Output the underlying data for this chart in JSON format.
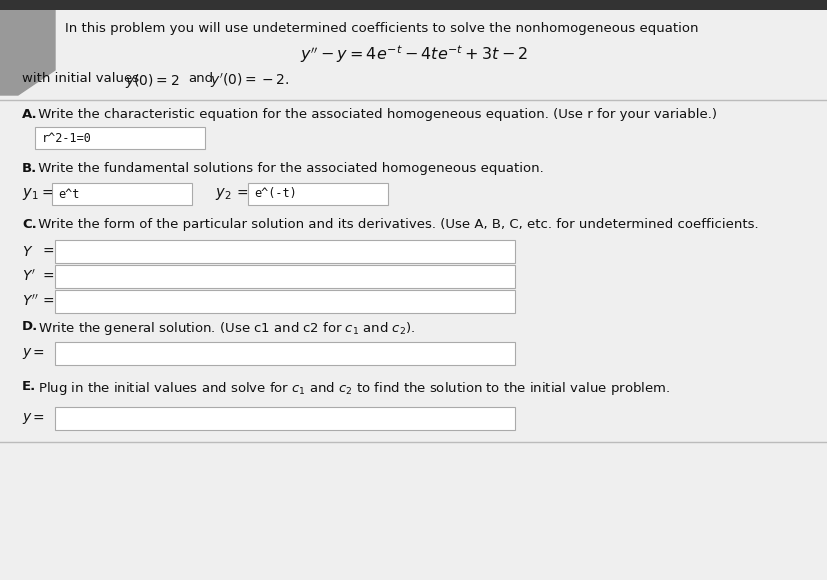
{
  "bg_color": "#efefef",
  "white": "#ffffff",
  "header_bg": "#333333",
  "text_color": "#111111",
  "header_text": "In this problem you will use undetermined coefficients to solve the nonhomogeneous equation",
  "equation": "$y'' - y = 4e^{-t} - 4te^{-t} + 3t - 2$",
  "initial_values_1": "with initial values",
  "initial_values_2": "$y(0) = 2$",
  "initial_values_3": "and",
  "initial_values_4": "$y'(0) = -2.$",
  "part_A_label": "A.",
  "part_A_text": " Write the characteristic equation for the associated homogeneous equation. (Use r for your variable.)",
  "part_A_box": "r^2-1=0",
  "part_B_label": "B.",
  "part_B_text": " Write the fundamental solutions for the associated homogeneous equation.",
  "y1_pre": "$y_1$",
  "y1_box": "e^t",
  "y2_pre": "$y_2$",
  "y2_box": "e^(-t)",
  "part_C_label": "C.",
  "part_C_text": " Write the form of the particular solution and its derivatives. (Use A, B, C, etc. for undetermined coefficients.",
  "Y_label": "$Y$",
  "Yp_label": "$Y'$",
  "Ypp_label": "$Y''$",
  "part_D_label": "D.",
  "part_D_text": " Write the general solution. (Use c1 and c2 for $c_1$ and $c_2$).",
  "part_D_y_label": "$y$",
  "part_E_label": "E.",
  "part_E_text": " Plug in the initial values and solve for $c_1$ and $c_2$ to find the solution to the initial value problem.",
  "part_E_y_label": "$y$",
  "gray_color": "#999999",
  "sep_color": "#bbbbbb",
  "box_edge_color": "#aaaaaa"
}
